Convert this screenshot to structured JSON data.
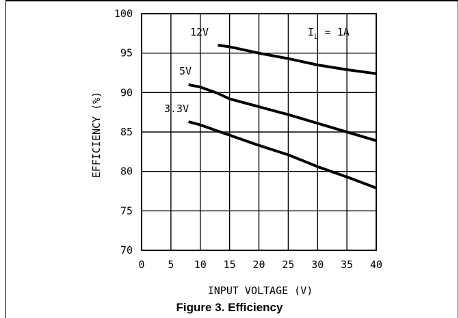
{
  "caption": "Figure 3. Efficiency",
  "chart_data": {
    "type": "line",
    "xlabel": "INPUT VOLTAGE (V)",
    "ylabel": "EFFICIENCY (%)",
    "xlim": [
      0,
      40
    ],
    "ylim": [
      70,
      100
    ],
    "xticks": [
      0,
      5,
      10,
      15,
      20,
      25,
      30,
      35,
      40
    ],
    "yticks": [
      70,
      75,
      80,
      85,
      90,
      95,
      100
    ],
    "grid": true,
    "annotation": {
      "prefix": "I",
      "subscript": "L",
      "suffix": " = 1A"
    },
    "series": [
      {
        "name": "12V",
        "x": [
          13,
          15,
          20,
          25,
          30,
          35,
          40
        ],
        "y": [
          96,
          95.8,
          95,
          94.3,
          93.5,
          92.9,
          92.4
        ]
      },
      {
        "name": "5V",
        "x": [
          8,
          10,
          13,
          15,
          20,
          25,
          30,
          35,
          40
        ],
        "y": [
          91,
          90.7,
          89.9,
          89.2,
          88.2,
          87.2,
          86.1,
          85.0,
          83.9
        ]
      },
      {
        "name": "3.3V",
        "x": [
          8,
          10,
          13,
          15,
          20,
          25,
          30,
          35,
          40
        ],
        "y": [
          86.3,
          85.9,
          85.1,
          84.6,
          83.3,
          82.1,
          80.6,
          79.3,
          77.9
        ]
      }
    ]
  }
}
